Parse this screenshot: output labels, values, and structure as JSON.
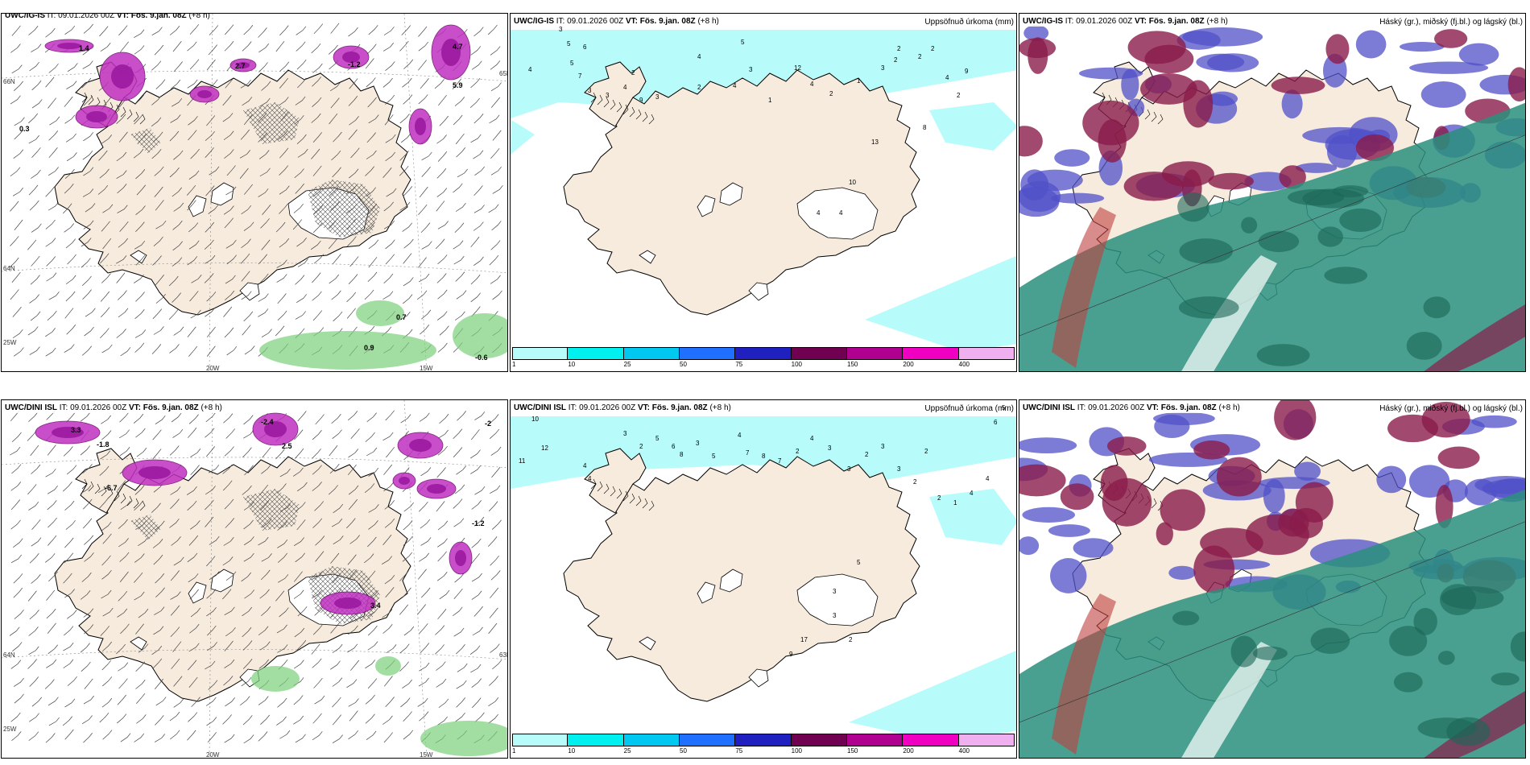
{
  "panels": [
    {
      "header_model": "UWC/IG-IS",
      "header_it": "IT: 09.01.2026 00Z",
      "header_vt": "VT: Fös. 9.jan. 08Z",
      "header_lead": "(+8 h)",
      "title_right": "",
      "temps": [
        "2.7",
        "-1.2",
        "5.9",
        "4.7",
        "1.4",
        "0.3",
        "0.7",
        "0.9",
        "-0.6"
      ],
      "axis_labels": [
        "20W",
        "15W",
        "25W",
        "66N",
        "65N",
        "64N"
      ]
    },
    {
      "header_model": "UWC/IG-IS",
      "header_it": "IT: 09.01.2026 00Z",
      "header_vt": "VT: Fös. 9.jan. 08Z",
      "header_lead": "(+8 h)",
      "title_right": "Uppsöfnuð úrkoma (mm)",
      "precip_values": [
        "3",
        "5",
        "6",
        "4",
        "5",
        "7",
        "2",
        "4",
        "3",
        "3",
        "9",
        "3",
        "4",
        "5",
        "3",
        "2",
        "4",
        "1",
        "12",
        "4",
        "2",
        "1",
        "3",
        "2",
        "2",
        "2",
        "2",
        "4",
        "2",
        "9",
        "8",
        "13",
        "10",
        "4",
        "4"
      ]
    },
    {
      "header_model": "UWC/IG-IS",
      "header_it": "IT: 09.01.2026 00Z",
      "header_vt": "VT: Fös. 9.jan. 08Z",
      "header_lead": "(+8 h)",
      "title_right": "Háský (gr.), miðský (fj.bl.) og lágský (bl.)"
    },
    {
      "header_model": "UWC/DINI ISL",
      "header_it": "IT: 09.01.2026 00Z",
      "header_vt": "VT: Fös. 9.jan. 08Z",
      "header_lead": "(+8 h)",
      "title_right": "",
      "temps": [
        "-2.4",
        "3.3",
        "2.5",
        "-1.8",
        "-6.7",
        "-1.2",
        "3.4",
        "-2"
      ],
      "axis_labels": [
        "20W",
        "15W",
        "25W",
        "64N",
        "63N"
      ]
    },
    {
      "header_model": "UWC/DINI ISL",
      "header_it": "IT: 09.01.2026 00Z",
      "header_vt": "VT: Fös. 9.jan. 08Z",
      "header_lead": "(+8 h)",
      "title_right": "Uppsöfnuð úrkoma (mm)",
      "precip_values": [
        "10",
        "12",
        "11",
        "4",
        "4",
        "3",
        "2",
        "5",
        "6",
        "8",
        "3",
        "5",
        "4",
        "7",
        "8",
        "7",
        "2",
        "4",
        "3",
        "3",
        "2",
        "3",
        "3",
        "2",
        "2",
        "2",
        "1",
        "4",
        "4",
        "6",
        "5",
        "5",
        "3",
        "3",
        "2",
        "17",
        "9"
      ]
    },
    {
      "header_model": "UWC/DINI ISL",
      "header_it": "IT: 09.01.2026 00Z",
      "header_vt": "VT: Fös. 9.jan. 08Z",
      "header_lead": "(+8 h)",
      "title_right": "Háský (gr.), miðský (fj.bl.) og lágský (bl.)"
    }
  ],
  "colorbar": {
    "ticks": [
      "1",
      "10",
      "25",
      "50",
      "75",
      "100",
      "150",
      "200",
      "400"
    ],
    "colors": [
      "#b8fbfb",
      "#00f0f0",
      "#00c8f0",
      "#2070ff",
      "#2020c0",
      "#700050",
      "#b00090",
      "#f000c0",
      "#f0b0f0"
    ]
  },
  "colors": {
    "land": "#f6ebdd",
    "snow": "#ffffff",
    "sea_precip": "#b8fbfb",
    "temp_purple": "#c030c0",
    "temp_green": "#7ad07a",
    "cloud_high": "#2a8f7c",
    "cloud_mid": "#5050c8",
    "cloud_low": "#8a1c4a"
  }
}
